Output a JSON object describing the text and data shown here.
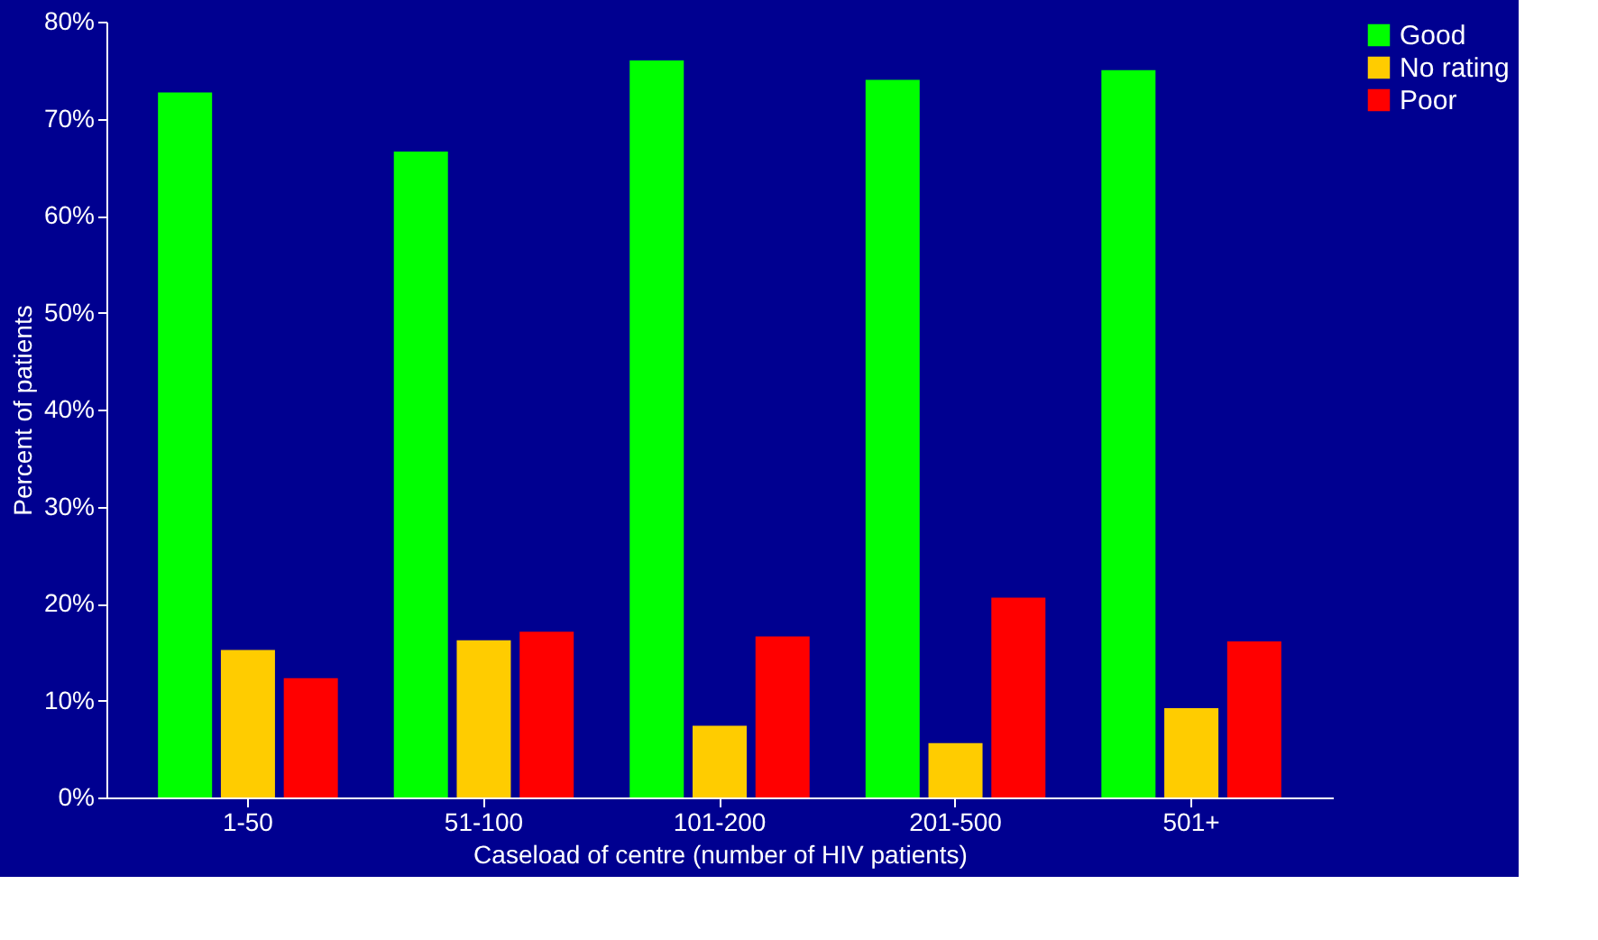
{
  "chart_data": {
    "type": "bar",
    "xlabel": "Caseload of centre (number of HIV patients)",
    "ylabel": "Percent of patients",
    "categories": [
      "1-50",
      "51-100",
      "101-200",
      "201-500",
      "501+"
    ],
    "series": [
      {
        "name": "Good",
        "color": "#00ff00",
        "values": [
          72.7,
          66.6,
          76.0,
          74.0,
          75.0
        ]
      },
      {
        "name": "No rating",
        "color": "#ffcc00",
        "values": [
          15.2,
          16.2,
          7.4,
          5.6,
          9.2
        ]
      },
      {
        "name": "Poor",
        "color": "#ff0000",
        "values": [
          12.3,
          17.1,
          16.6,
          20.6,
          16.1
        ]
      }
    ],
    "ylim": [
      0,
      80
    ],
    "yticks": [
      {
        "value": 0,
        "label": "0%"
      },
      {
        "value": 10,
        "label": "10%"
      },
      {
        "value": 20,
        "label": "20%"
      },
      {
        "value": 30,
        "label": "30%"
      },
      {
        "value": 40,
        "label": "40%"
      },
      {
        "value": 50,
        "label": "50%"
      },
      {
        "value": 60,
        "label": "60%"
      },
      {
        "value": 70,
        "label": "70%"
      },
      {
        "value": 80,
        "label": "80%"
      }
    ],
    "grid": false,
    "legend": "right"
  }
}
